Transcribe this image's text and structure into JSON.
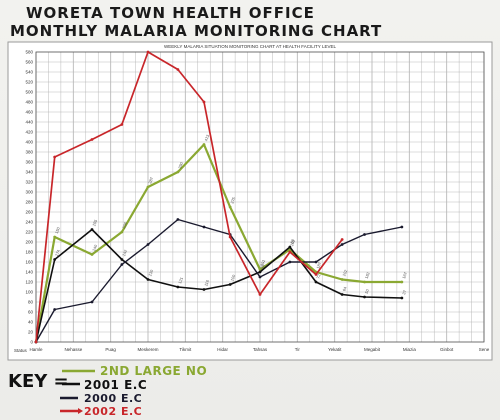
{
  "title_line1": "WORETA TOWN HEALTH OFFICE",
  "title_line2": "MONTHLY MALARIA MONITORING CHART",
  "key_label": "KEY =",
  "chart_data": {
    "type": "line",
    "title": "WEEKLY MALARIA SITUATION MONITORING CHART AT HEALTH FACILITY LEVEL",
    "xlabel": "",
    "ylabel": "Status",
    "categories": [
      "Hamle",
      "Nehasse",
      "Puag",
      "Meskerem",
      "Tikmit",
      "Hidar",
      "Tahsas",
      "Tir",
      "Yekatit",
      "Megabit",
      "Miazia",
      "Ginbot",
      "Sene"
    ],
    "ylim": [
      0,
      580
    ],
    "y_ticks": [
      0,
      20,
      40,
      60,
      80,
      100,
      120,
      140,
      160,
      180,
      200,
      220,
      240,
      260,
      280,
      300,
      320,
      340,
      360,
      380,
      400,
      420,
      440,
      460,
      480,
      500,
      520,
      540,
      560,
      580
    ],
    "y_tick_labels": [
      "0",
      "20",
      "40",
      "60",
      "80",
      "100",
      "120",
      "140",
      "160",
      "180",
      "200",
      "220",
      "240",
      "260",
      "280",
      "300",
      "320",
      "340",
      "360",
      "380",
      "400",
      "420",
      "440",
      "460",
      "480",
      "500",
      "520",
      "540",
      "560",
      "580"
    ],
    "grid": true,
    "series": [
      {
        "name": "2ND LARGE NO",
        "color": "#8aa832",
        "x": [
          0,
          0.5,
          1.5,
          2.3,
          3.0,
          3.8,
          4.5,
          5.2,
          6.0,
          6.8,
          7.5,
          8.2,
          8.8,
          9.8
        ],
        "values": [
          0,
          210,
          175,
          220,
          310,
          340,
          395,
          270,
          145,
          185,
          140,
          125,
          120,
          120
        ]
      },
      {
        "name": "2001 E.C",
        "color": "#101010",
        "x": [
          0,
          0.5,
          1.5,
          2.3,
          3.0,
          3.8,
          4.5,
          5.2,
          6.0,
          6.8,
          7.5,
          8.2,
          8.8,
          9.8
        ],
        "values": [
          0,
          165,
          225,
          165,
          125,
          110,
          105,
          115,
          140,
          190,
          120,
          95,
          90,
          88
        ]
      },
      {
        "name": "2000 E.C",
        "color": "#1a1a2e",
        "x": [
          0,
          0.5,
          1.5,
          2.3,
          3.0,
          3.8,
          4.5,
          5.2,
          6.0,
          6.8,
          7.5,
          8.2,
          8.8,
          9.8
        ],
        "values": [
          0,
          65,
          80,
          155,
          195,
          245,
          230,
          215,
          130,
          160,
          160,
          195,
          215,
          230
        ]
      },
      {
        "name": "2002 E.C",
        "color": "#c8262a",
        "x": [
          0,
          0.5,
          1.5,
          2.3,
          3.0,
          3.8,
          4.5,
          5.2,
          6.0,
          6.8,
          7.5,
          8.2,
          8.8
        ],
        "values": [
          0,
          370,
          405,
          435,
          580,
          545,
          480,
          210,
          95,
          180,
          135,
          205,
          null
        ]
      }
    ],
    "data_labels": [
      "150",
      "240",
      "226",
      "287",
      "390",
      "413",
      "375",
      "291",
      "201",
      "187",
      "202",
      "182",
      "167",
      "174",
      "155",
      "142",
      "130",
      "121",
      "116",
      "100",
      "93",
      "80",
      "72",
      "64",
      "50",
      "37"
    ]
  }
}
